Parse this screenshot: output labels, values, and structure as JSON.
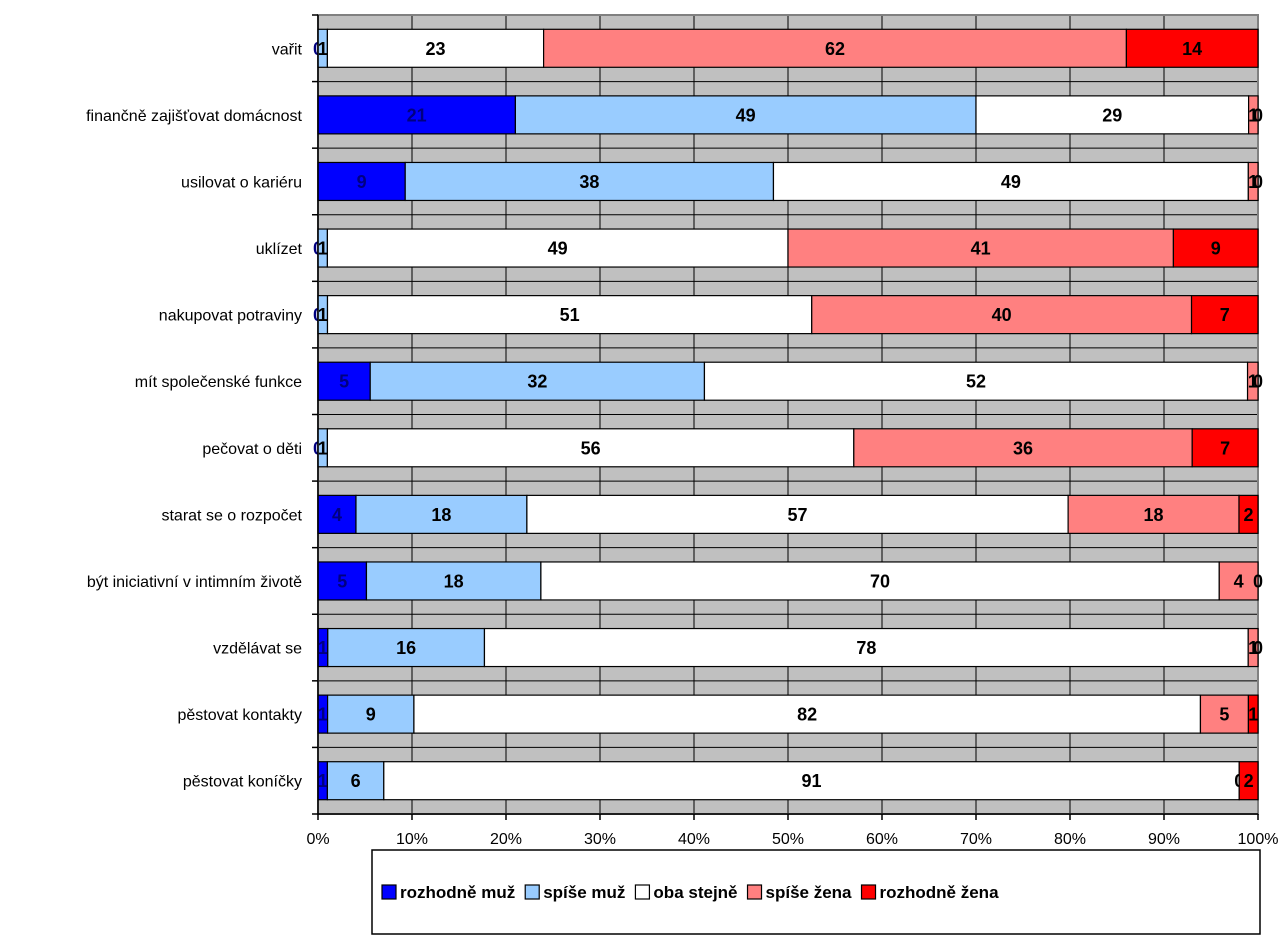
{
  "chart_data": {
    "type": "bar",
    "orientation": "horizontal",
    "stacked": "percent",
    "title": "",
    "xlabel": "",
    "ylabel": "",
    "xlim": [
      0,
      100
    ],
    "x_ticks": [
      "0%",
      "10%",
      "20%",
      "30%",
      "40%",
      "50%",
      "60%",
      "70%",
      "80%",
      "90%",
      "100%"
    ],
    "grid": true,
    "legend_position": "bottom",
    "categories": [
      "vařit",
      "finančně zajišťovat domácnost",
      "usilovat o kariéru",
      "uklízet",
      "nakupovat potraviny",
      "mít společenské funkce",
      "pečovat o děti",
      "starat se o rozpočet",
      "být iniciativní v intimním životě",
      "vzdělávat se",
      "pěstovat kontakty",
      "pěstovat koníčky"
    ],
    "series": [
      {
        "name": "rozhodně muž",
        "color": "#0000FF",
        "label_color": "#000080",
        "values": [
          0,
          21,
          9,
          0,
          0,
          5,
          0,
          4,
          5,
          1,
          1,
          1
        ]
      },
      {
        "name": "spíše muž",
        "color": "#99CCFF",
        "label_color": "#000000",
        "values": [
          1,
          49,
          38,
          1,
          1,
          32,
          1,
          18,
          18,
          16,
          9,
          6
        ]
      },
      {
        "name": "oba stejně",
        "color": "#FFFFFF",
        "label_color": "#000000",
        "values": [
          23,
          29,
          49,
          49,
          51,
          52,
          56,
          57,
          70,
          78,
          82,
          91
        ]
      },
      {
        "name": "spíše žena",
        "color": "#FF8080",
        "label_color": "#000000",
        "values": [
          62,
          1,
          1,
          41,
          40,
          1,
          36,
          18,
          4,
          1,
          5,
          0
        ]
      },
      {
        "name": "rozhodně žena",
        "color": "#FF0000",
        "label_color": "#000000",
        "values": [
          14,
          0,
          0,
          9,
          7,
          0,
          7,
          2,
          0,
          0,
          1,
          2
        ]
      }
    ]
  }
}
